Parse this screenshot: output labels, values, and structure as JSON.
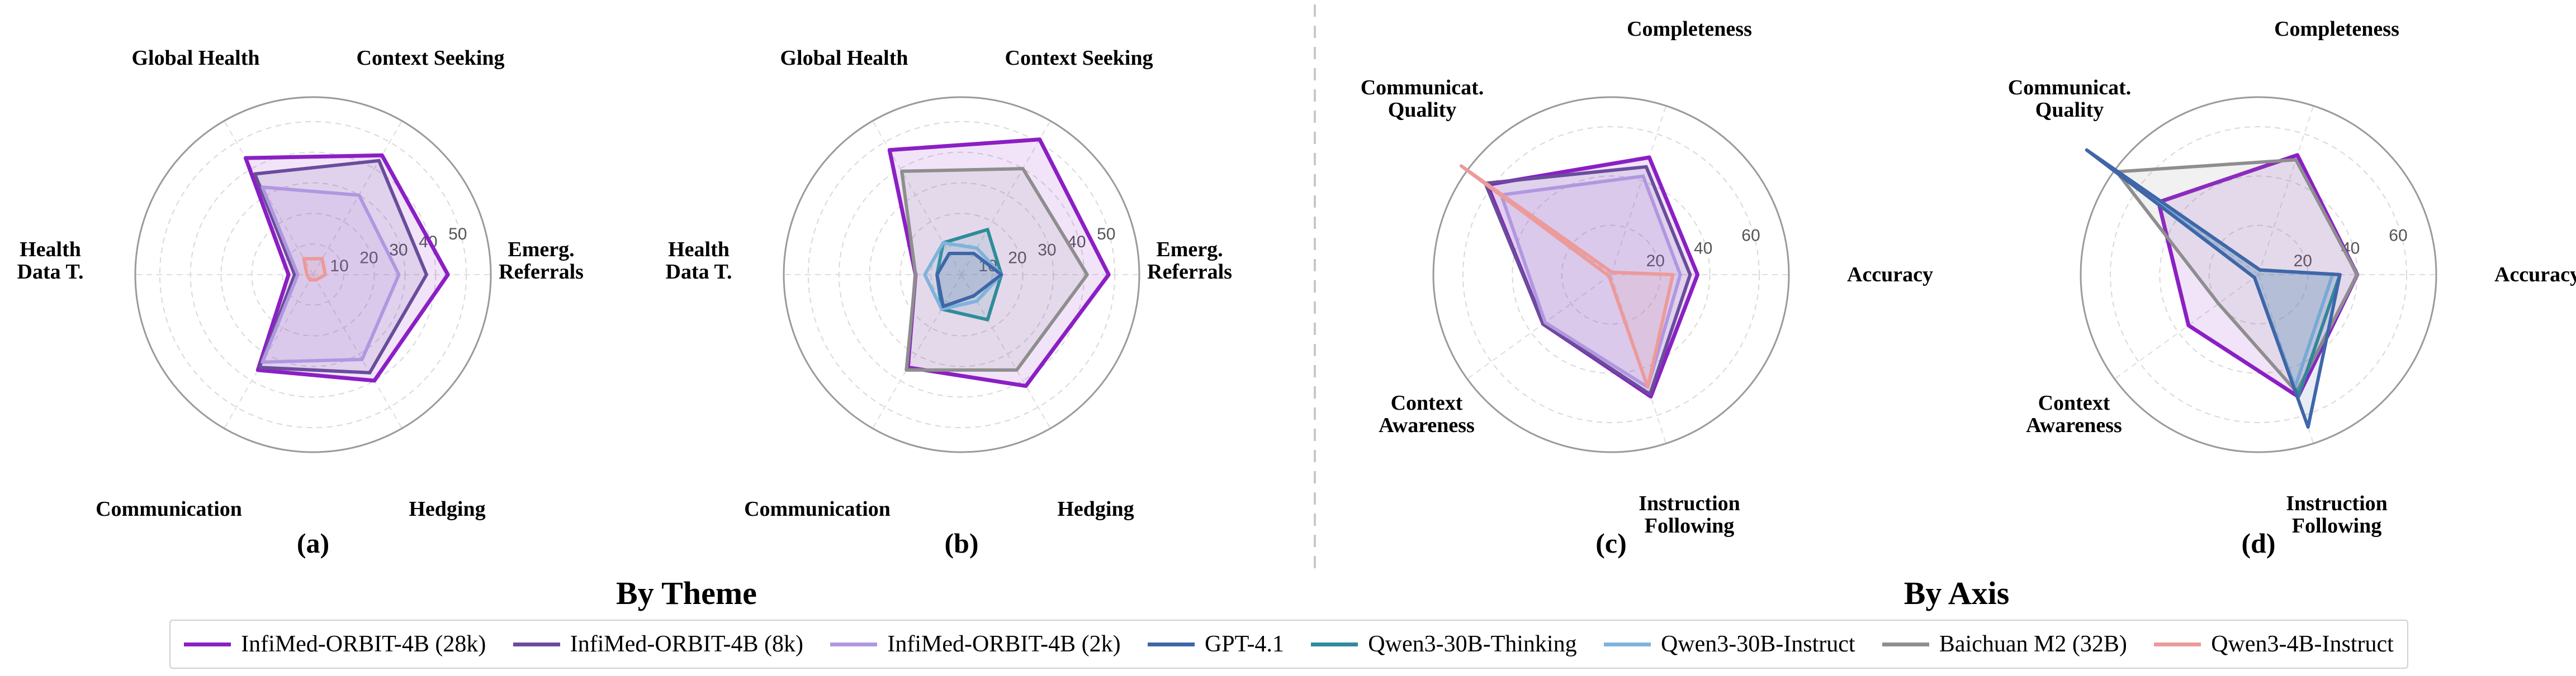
{
  "group_titles": {
    "left": "By Theme",
    "right": "By Axis"
  },
  "legend": [
    {
      "name": "InfiMed-ORBIT-4B (28k)",
      "color": "#8b1fc4"
    },
    {
      "name": "InfiMed-ORBIT-4B (8k)",
      "color": "#6a4c9c"
    },
    {
      "name": "InfiMed-ORBIT-4B (2k)",
      "color": "#b197e0"
    },
    {
      "name": "GPT-4.1",
      "color": "#3f66a8"
    },
    {
      "name": "Qwen3-30B-Thinking",
      "color": "#2e8c9b"
    },
    {
      "name": "Qwen3-30B-Instruct",
      "color": "#7fb3dc"
    },
    {
      "name": "Baichuan M2 (32B)",
      "color": "#8e8e8e"
    },
    {
      "name": "Qwen3-4B-Instruct",
      "color": "#ec9a9a"
    }
  ],
  "chart_data": [
    {
      "type": "radar",
      "panel_label": "(a)",
      "group": "By Theme",
      "axes": [
        "Emerg. Referrals",
        "Context Seeking",
        "Global Health",
        "Health Data T.",
        "Communication",
        "Hedging"
      ],
      "rlim": [
        0,
        58
      ],
      "ticks": [
        10,
        20,
        30,
        40,
        50
      ],
      "series": [
        {
          "name": "InfiMed-ORBIT-4B (28k)",
          "values": [
            44,
            45,
            44,
            8,
            36,
            40
          ]
        },
        {
          "name": "InfiMed-ORBIT-4B (8k)",
          "values": [
            37,
            43,
            38,
            6,
            35,
            37
          ]
        },
        {
          "name": "InfiMed-ORBIT-4B (2k)",
          "values": [
            28,
            30,
            33,
            5,
            33,
            32
          ]
        },
        {
          "name": "Qwen3-4B-Instruct",
          "values": [
            4,
            6,
            6,
            2,
            2,
            2
          ]
        }
      ]
    },
    {
      "type": "radar",
      "panel_label": "(b)",
      "group": "By Theme",
      "axes": [
        "Emerg. Referrals",
        "Context Seeking",
        "Global Health",
        "Health Data T.",
        "Communication",
        "Hedging"
      ],
      "rlim": [
        0,
        58
      ],
      "ticks": [
        10,
        20,
        30,
        40,
        50
      ],
      "series": [
        {
          "name": "InfiMed-ORBIT-4B (28k)",
          "values": [
            48,
            51,
            47,
            15,
            35,
            42
          ]
        },
        {
          "name": "Baichuan M2 (32B)",
          "values": [
            41,
            40,
            39,
            15,
            36,
            36
          ]
        },
        {
          "name": "Qwen3-30B-Thinking",
          "values": [
            13,
            17,
            12,
            8,
            13,
            17
          ]
        },
        {
          "name": "Qwen3-30B-Instruct",
          "values": [
            13,
            10,
            12,
            12,
            13,
            10
          ]
        },
        {
          "name": "GPT-4.1",
          "values": [
            13,
            8,
            8,
            8,
            12,
            8
          ]
        }
      ]
    },
    {
      "type": "radar",
      "panel_label": "(c)",
      "group": "By Axis",
      "axes": [
        "Accuracy",
        "Completeness",
        "Communicat. Quality",
        "Context Awareness",
        "Instruction Following"
      ],
      "rlim": [
        0,
        72
      ],
      "ticks": [
        20,
        40,
        60
      ],
      "series": [
        {
          "name": "InfiMed-ORBIT-4B (28k)",
          "values": [
            35,
            50,
            62,
            34,
            52
          ]
        },
        {
          "name": "InfiMed-ORBIT-4B (8k)",
          "values": [
            32,
            46,
            63,
            34,
            51
          ]
        },
        {
          "name": "InfiMed-ORBIT-4B (2k)",
          "values": [
            28,
            42,
            55,
            33,
            48
          ]
        },
        {
          "name": "Qwen3-4B-Instruct",
          "values": [
            25,
            1,
            75,
            1,
            48
          ]
        }
      ]
    },
    {
      "type": "radar",
      "panel_label": "(d)",
      "group": "By Axis",
      "axes": [
        "Accuracy",
        "Completeness",
        "Communicat. Quality",
        "Context Awareness",
        "Instruction Following"
      ],
      "rlim": [
        0,
        72
      ],
      "ticks": [
        20,
        40,
        60
      ],
      "series": [
        {
          "name": "InfiMed-ORBIT-4B (28k)",
          "values": [
            40,
            51,
            50,
            35,
            52
          ]
        },
        {
          "name": "Baichuan M2 (32B)",
          "values": [
            40,
            49,
            71,
            20,
            50
          ]
        },
        {
          "name": "Qwen3-30B-Thinking",
          "values": [
            33,
            2,
            67,
            2,
            52
          ]
        },
        {
          "name": "Qwen3-30B-Instruct",
          "values": [
            30,
            2,
            66,
            2,
            48
          ]
        },
        {
          "name": "GPT-4.1",
          "values": [
            33,
            2,
            86,
            2,
            65
          ]
        }
      ]
    }
  ]
}
